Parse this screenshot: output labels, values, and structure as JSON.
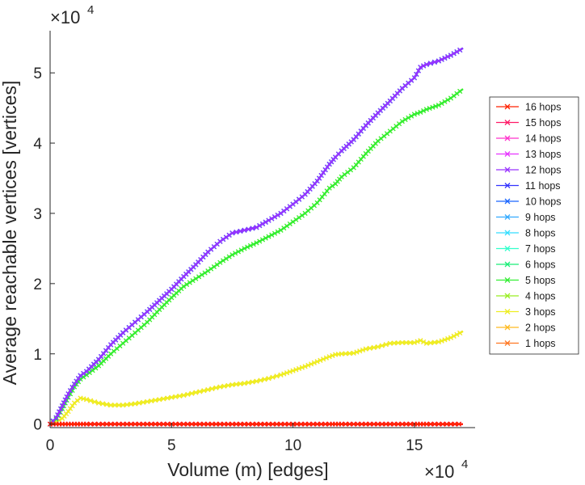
{
  "chart_data": {
    "type": "line",
    "title": "",
    "xlabel": "Volume (m) [edges]",
    "ylabel": "Average reachable vertices [vertices]",
    "x_exponent_label": "×10",
    "x_exponent_power": "4",
    "y_exponent_label": "×10",
    "y_exponent_power": "4",
    "x_scale_factor": 10000,
    "y_scale_factor": 10000,
    "xlim": [
      0,
      175000
    ],
    "ylim": [
      -500,
      56000
    ],
    "xticks": [
      0,
      50000,
      100000,
      150000
    ],
    "xtick_labels": [
      "0",
      "5",
      "10",
      "15"
    ],
    "yticks": [
      0,
      10000,
      20000,
      30000,
      40000,
      50000
    ],
    "ytick_labels": [
      "0",
      "1",
      "2",
      "3",
      "4",
      "5"
    ],
    "grid": false,
    "legend_position": "right",
    "marker": "x",
    "x": [
      0,
      2500,
      5000,
      7500,
      10000,
      12500,
      15000,
      20000,
      25000,
      30000,
      35000,
      40000,
      45000,
      50000,
      55000,
      60000,
      65000,
      70000,
      75000,
      80000,
      85000,
      90000,
      95000,
      100000,
      105000,
      110000,
      115000,
      117500,
      120000,
      125000,
      130000,
      135000,
      140000,
      145000,
      150000,
      152500,
      155000,
      160000,
      165000,
      170000
    ],
    "series": [
      {
        "name": "16 hops",
        "color": "#ff2200",
        "values": [
          0,
          0,
          0,
          0,
          0,
          0,
          0,
          0,
          0,
          0,
          0,
          0,
          0,
          0,
          0,
          0,
          0,
          0,
          0,
          0,
          0,
          0,
          0,
          0,
          0,
          0,
          0,
          0,
          0,
          0,
          0,
          0,
          0,
          0,
          0,
          0,
          0,
          0,
          0,
          0
        ]
      },
      {
        "name": "15 hops",
        "color": "#ff1a66",
        "values": [
          0,
          0,
          0,
          0,
          0,
          0,
          0,
          0,
          0,
          0,
          0,
          0,
          0,
          0,
          0,
          0,
          0,
          0,
          0,
          0,
          0,
          0,
          0,
          0,
          0,
          0,
          0,
          0,
          0,
          0,
          0,
          0,
          0,
          0,
          0,
          0,
          0,
          0,
          0,
          0
        ]
      },
      {
        "name": "14 hops",
        "color": "#ff33cc",
        "values": [
          0,
          0,
          0,
          0,
          0,
          0,
          0,
          0,
          0,
          0,
          0,
          0,
          0,
          0,
          0,
          0,
          0,
          0,
          0,
          0,
          0,
          0,
          0,
          0,
          0,
          0,
          0,
          0,
          0,
          0,
          0,
          0,
          0,
          0,
          0,
          0,
          0,
          0,
          0,
          0
        ]
      },
      {
        "name": "13 hops",
        "color": "#e633ff",
        "values": [
          0,
          0,
          0,
          0,
          0,
          0,
          0,
          0,
          0,
          0,
          0,
          0,
          0,
          0,
          0,
          0,
          0,
          0,
          0,
          0,
          0,
          0,
          0,
          0,
          0,
          0,
          0,
          0,
          0,
          0,
          0,
          0,
          0,
          0,
          0,
          0,
          0,
          0,
          0,
          0
        ]
      },
      {
        "name": "12 hops",
        "color": "#9933ff",
        "values": [
          0,
          900,
          2600,
          4300,
          5700,
          6900,
          7500,
          9200,
          11300,
          13000,
          14500,
          16000,
          17600,
          19200,
          21000,
          22700,
          24500,
          26000,
          27200,
          27600,
          28000,
          29000,
          30000,
          31300,
          32700,
          34600,
          37000,
          38000,
          38900,
          40500,
          42500,
          44300,
          46000,
          47800,
          49300,
          50800,
          51200,
          51700,
          52500,
          53500
        ]
      },
      {
        "name": "11 hops",
        "color": "#3333ff",
        "values": [
          0,
          900,
          2600,
          4300,
          5700,
          6900,
          7500,
          9200,
          11300,
          13000,
          14500,
          16000,
          17600,
          19200,
          21000,
          22700,
          24500,
          26000,
          27200,
          27600,
          28000,
          29000,
          30000,
          31300,
          32700,
          34600,
          37000,
          38000,
          38900,
          40500,
          42500,
          44300,
          46000,
          47800,
          49300,
          50800,
          51200,
          51700,
          52500,
          53500
        ]
      },
      {
        "name": "10 hops",
        "color": "#1a66ff",
        "values": [
          0,
          900,
          2600,
          4300,
          5700,
          6900,
          7500,
          9200,
          11300,
          13000,
          14500,
          16000,
          17600,
          19200,
          21000,
          22700,
          24500,
          26000,
          27200,
          27600,
          28000,
          29000,
          30000,
          31300,
          32700,
          34600,
          37000,
          38000,
          38900,
          40500,
          42500,
          44300,
          46000,
          47800,
          49300,
          50800,
          51200,
          51700,
          52500,
          53500
        ]
      },
      {
        "name": "9 hops",
        "color": "#33aaff",
        "values": [
          0,
          900,
          2600,
          4300,
          5700,
          6900,
          7500,
          9200,
          11300,
          13000,
          14500,
          16000,
          17600,
          19200,
          21000,
          22700,
          24500,
          26000,
          27200,
          27600,
          28000,
          29000,
          30000,
          31300,
          32700,
          34600,
          37000,
          38000,
          38900,
          40500,
          42500,
          44300,
          46000,
          47800,
          49300,
          50800,
          51200,
          51700,
          52500,
          53500
        ]
      },
      {
        "name": "8 hops",
        "color": "#33ddff",
        "values": [
          0,
          900,
          2600,
          4300,
          5700,
          6900,
          7500,
          9200,
          11300,
          13000,
          14500,
          16000,
          17600,
          19200,
          21000,
          22700,
          24500,
          26000,
          27200,
          27600,
          28000,
          29000,
          30000,
          31300,
          32700,
          34600,
          37000,
          38000,
          38900,
          40500,
          42500,
          44300,
          46000,
          47800,
          49300,
          50800,
          51200,
          51700,
          52500,
          53500
        ]
      },
      {
        "name": "7 hops",
        "color": "#33ffcc",
        "values": [
          0,
          900,
          2600,
          4300,
          5700,
          6900,
          7500,
          9200,
          11300,
          13000,
          14500,
          16000,
          17600,
          19200,
          21000,
          22700,
          24500,
          26000,
          27200,
          27600,
          28000,
          29000,
          30000,
          31300,
          32700,
          34600,
          37000,
          38000,
          38900,
          40500,
          42500,
          44300,
          46000,
          47800,
          49300,
          50800,
          51200,
          51700,
          52500,
          53500
        ]
      },
      {
        "name": "6 hops",
        "color": "#1aee77",
        "values": [
          0,
          900,
          2600,
          4300,
          5700,
          6900,
          7500,
          9200,
          11300,
          13000,
          14500,
          16000,
          17600,
          19200,
          21000,
          22700,
          24500,
          26000,
          27200,
          27600,
          28000,
          29000,
          30000,
          31300,
          32700,
          34600,
          37000,
          38000,
          38900,
          40500,
          42500,
          44300,
          46000,
          47800,
          49300,
          50800,
          51200,
          51700,
          52500,
          53500
        ]
      },
      {
        "name": "5 hops",
        "color": "#33ee33",
        "values": [
          0,
          700,
          2200,
          3800,
          5300,
          6400,
          7000,
          8300,
          10000,
          11500,
          13000,
          14500,
          16300,
          18000,
          19600,
          20700,
          21800,
          23000,
          24100,
          25000,
          25800,
          26700,
          27600,
          28800,
          30000,
          31500,
          33600,
          34200,
          35200,
          36500,
          38500,
          40300,
          41700,
          43100,
          44100,
          44400,
          44800,
          45400,
          46400,
          47700
        ]
      },
      {
        "name": "4 hops",
        "color": "#99ee22",
        "values": [
          0,
          700,
          2200,
          3800,
          5300,
          6400,
          7000,
          8300,
          10000,
          11500,
          13000,
          14500,
          16300,
          18000,
          19600,
          20700,
          21800,
          23000,
          24100,
          25000,
          25800,
          26700,
          27600,
          28800,
          30000,
          31500,
          33600,
          34200,
          35200,
          36500,
          38500,
          40300,
          41700,
          43100,
          44100,
          44400,
          44800,
          45400,
          46400,
          47700
        ]
      },
      {
        "name": "3 hops",
        "color": "#eeee22",
        "values": [
          0,
          300,
          800,
          1800,
          3000,
          3700,
          3500,
          3000,
          2700,
          2700,
          2900,
          3200,
          3500,
          3800,
          4100,
          4500,
          4900,
          5300,
          5600,
          5800,
          6100,
          6500,
          7000,
          7600,
          8200,
          8900,
          9600,
          9900,
          10000,
          10100,
          10700,
          11000,
          11500,
          11600,
          11600,
          11900,
          11500,
          11700,
          12300,
          13200
        ]
      },
      {
        "name": "2 hops",
        "color": "#ffbb22",
        "values": [
          0,
          300,
          800,
          1800,
          3000,
          3700,
          3500,
          3000,
          2700,
          2700,
          2900,
          3200,
          3500,
          3800,
          4100,
          4500,
          4900,
          5300,
          5600,
          5800,
          6100,
          6500,
          7000,
          7600,
          8200,
          8900,
          9600,
          9900,
          10000,
          10100,
          10700,
          11000,
          11500,
          11600,
          11600,
          11900,
          11500,
          11700,
          12300,
          13200
        ]
      },
      {
        "name": "1 hops",
        "color": "#ff7722",
        "values": [
          0,
          0,
          0,
          0,
          0,
          0,
          0,
          0,
          0,
          0,
          0,
          0,
          0,
          0,
          0,
          0,
          0,
          0,
          0,
          0,
          0,
          0,
          0,
          0,
          0,
          0,
          0,
          0,
          0,
          0,
          0,
          0,
          0,
          0,
          0,
          0,
          0,
          0,
          0,
          0
        ]
      }
    ]
  }
}
